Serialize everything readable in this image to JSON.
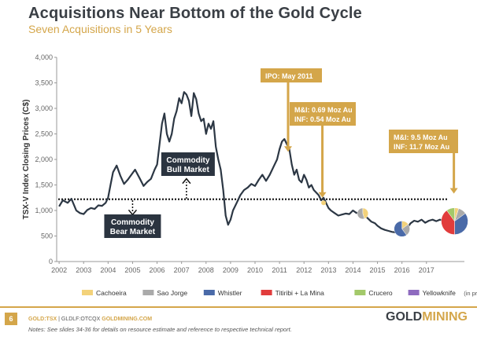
{
  "header": {
    "title": "Acquisitions Near Bottom of the Gold Cycle",
    "subtitle": "Seven Acquisitions in 5 Years"
  },
  "colors": {
    "line": "#2c3744",
    "gold": "#d4a64a",
    "dark_box": "#2b3440",
    "axis_text": "#666666",
    "cachoeira": "#f3d27a",
    "sao_jorge": "#aaaaaa",
    "whistler": "#4a6aa8",
    "titiribi": "#e13c3c",
    "crucero": "#a3c96a",
    "yellowknife": "#8e6bbf"
  },
  "chart_data": {
    "type": "line",
    "title": "Acquisitions Near Bottom of the Gold Cycle",
    "ylabel": "TSX-V Index Closing Prices (C$)",
    "xlabel": "",
    "ylim": [
      0,
      4000
    ],
    "xlim": [
      2002,
      2018
    ],
    "y_ticks": [
      0,
      500,
      1000,
      1500,
      2000,
      2500,
      3000,
      3500,
      4000
    ],
    "y_tick_labels": [
      "0",
      "500",
      "1,000",
      "1,500",
      "2,000",
      "2,500",
      "3,000",
      "3,500",
      "4,000"
    ],
    "x_ticks": [
      2002,
      2003,
      2004,
      2005,
      2006,
      2007,
      2008,
      2009,
      2010,
      2011,
      2012,
      2013,
      2014,
      2015,
      2016,
      2017
    ],
    "x_tick_labels": [
      "2002",
      "2003",
      "2004",
      "2005",
      "2006",
      "2007",
      "2008",
      "2009",
      "2010",
      "2011",
      "2012",
      "2013",
      "2014",
      "2015",
      "2016",
      "2017"
    ],
    "reference_line": 1220,
    "series": [
      {
        "name": "TSX-V Index",
        "x": [
          2002.0,
          2002.15,
          2002.35,
          2002.5,
          2002.7,
          2002.85,
          2003.0,
          2003.15,
          2003.3,
          2003.45,
          2003.6,
          2003.75,
          2003.9,
          2004.0,
          2004.1,
          2004.2,
          2004.35,
          2004.5,
          2004.65,
          2004.8,
          2004.95,
          2005.1,
          2005.3,
          2005.45,
          2005.6,
          2005.75,
          2005.9,
          2006.0,
          2006.1,
          2006.2,
          2006.3,
          2006.4,
          2006.5,
          2006.6,
          2006.7,
          2006.8,
          2006.9,
          2007.0,
          2007.1,
          2007.2,
          2007.3,
          2007.4,
          2007.5,
          2007.6,
          2007.7,
          2007.8,
          2007.9,
          2008.0,
          2008.1,
          2008.2,
          2008.3,
          2008.4,
          2008.5,
          2008.6,
          2008.7,
          2008.8,
          2008.9,
          2009.0,
          2009.1,
          2009.25,
          2009.4,
          2009.55,
          2009.7,
          2009.85,
          2010.0,
          2010.15,
          2010.3,
          2010.45,
          2010.6,
          2010.75,
          2010.9,
          2011.0,
          2011.1,
          2011.2,
          2011.3,
          2011.4,
          2011.5,
          2011.6,
          2011.7,
          2011.8,
          2011.9,
          2012.0,
          2012.1,
          2012.2,
          2012.3,
          2012.4,
          2012.5,
          2012.6,
          2012.7,
          2012.8,
          2012.9,
          2013.0,
          2013.1,
          2013.25,
          2013.4,
          2013.55,
          2013.7,
          2013.85,
          2014.0,
          2014.15,
          2014.3,
          2014.45,
          2014.6,
          2014.75,
          2014.9,
          2015.0,
          2015.15,
          2015.3,
          2015.45,
          2015.6,
          2015.75,
          2015.9,
          2016.0,
          2016.1,
          2016.2,
          2016.35,
          2016.5,
          2016.65,
          2016.8,
          2016.95,
          2017.1,
          2017.25,
          2017.4,
          2017.55,
          2017.7,
          2017.85
        ],
        "values": [
          1080,
          1200,
          1150,
          1230,
          1000,
          950,
          930,
          1010,
          1050,
          1030,
          1100,
          1090,
          1150,
          1250,
          1500,
          1750,
          1880,
          1680,
          1520,
          1600,
          1700,
          1800,
          1620,
          1480,
          1560,
          1620,
          1800,
          1900,
          2300,
          2700,
          2900,
          2500,
          2350,
          2500,
          2800,
          2950,
          3200,
          3100,
          3320,
          3270,
          3150,
          2850,
          3300,
          3180,
          2900,
          2750,
          2800,
          2500,
          2700,
          2600,
          2750,
          2250,
          2000,
          1800,
          1400,
          900,
          720,
          820,
          1000,
          1150,
          1300,
          1400,
          1450,
          1520,
          1480,
          1600,
          1700,
          1580,
          1700,
          1850,
          2000,
          2200,
          2350,
          2400,
          2300,
          2200,
          1900,
          1700,
          1800,
          1600,
          1550,
          1700,
          1600,
          1450,
          1500,
          1400,
          1350,
          1300,
          1200,
          1250,
          1150,
          1050,
          1000,
          950,
          900,
          920,
          940,
          930,
          1000,
          950,
          980,
          920,
          850,
          780,
          750,
          700,
          650,
          620,
          600,
          580,
          570,
          560,
          540,
          560,
          650,
          750,
          800,
          780,
          820,
          760,
          800,
          820,
          790,
          820,
          800,
          780
        ]
      }
    ],
    "annotations": [
      {
        "text": "IPO: May 2011",
        "x": 2011.35
      },
      {
        "text": "M&I: 0.69 Moz Au",
        "x": 2012.7
      },
      {
        "text": "INF: 0.54 Moz Au",
        "x": 2012.7
      },
      {
        "text": "M&I: 9.5 Moz Au",
        "x": 2018.1
      },
      {
        "text": "INF: 11.7 Moz Au",
        "x": 2018.1
      },
      {
        "text": "Commodity",
        "x": 2007.2
      },
      {
        "text": "Bull Market",
        "x": 2007.2
      },
      {
        "text": "Commodity",
        "x": 2005.0
      },
      {
        "text": "Bear Market",
        "x": 2005.0
      }
    ],
    "legend": [
      {
        "label": "Cachoeira",
        "color": "#f3d27a"
      },
      {
        "label": "Sao Jorge",
        "color": "#aaaaaa"
      },
      {
        "label": "Whistler",
        "color": "#4a6aa8"
      },
      {
        "label": "Titiribi + La Mina",
        "color": "#e13c3c"
      },
      {
        "label": "Crucero",
        "color": "#a3c96a"
      },
      {
        "label": "Yellowknife",
        "color": "#8e6bbf",
        "note": "(in preparation)"
      }
    ],
    "acquisition_markers": [
      {
        "x": 2012.8,
        "value": 1150,
        "slices": [
          {
            "name": "Cachoeira",
            "value": 100
          }
        ]
      },
      {
        "x": 2014.4,
        "value": 940,
        "slices": [
          {
            "name": "Cachoeira",
            "value": 45
          },
          {
            "name": "Sao Jorge",
            "value": 55
          }
        ]
      },
      {
        "x": 2016.0,
        "value": 640,
        "slices": [
          {
            "name": "Cachoeira",
            "value": 15
          },
          {
            "name": "Sao Jorge",
            "value": 25
          },
          {
            "name": "Whistler",
            "value": 60
          }
        ]
      },
      {
        "x": 2018.15,
        "value": 790,
        "slices": [
          {
            "name": "Cachoeira",
            "value": 5
          },
          {
            "name": "Sao Jorge",
            "value": 10
          },
          {
            "name": "Whistler",
            "value": 35
          },
          {
            "name": "Titiribi + La Mina",
            "value": 40
          },
          {
            "name": "Crucero",
            "value": 10
          }
        ]
      }
    ]
  },
  "footer": {
    "page_number": "6",
    "ticker_tsx": "GOLD:TSX",
    "ticker_otc": "GLDLF:OTCQX",
    "website": "GOLDMINING.COM",
    "notes": "Notes: See slides 34-36 for details on resource estimate and reference to respective technical report.",
    "logo_gold": "GOLD",
    "logo_mining": "MINING"
  }
}
